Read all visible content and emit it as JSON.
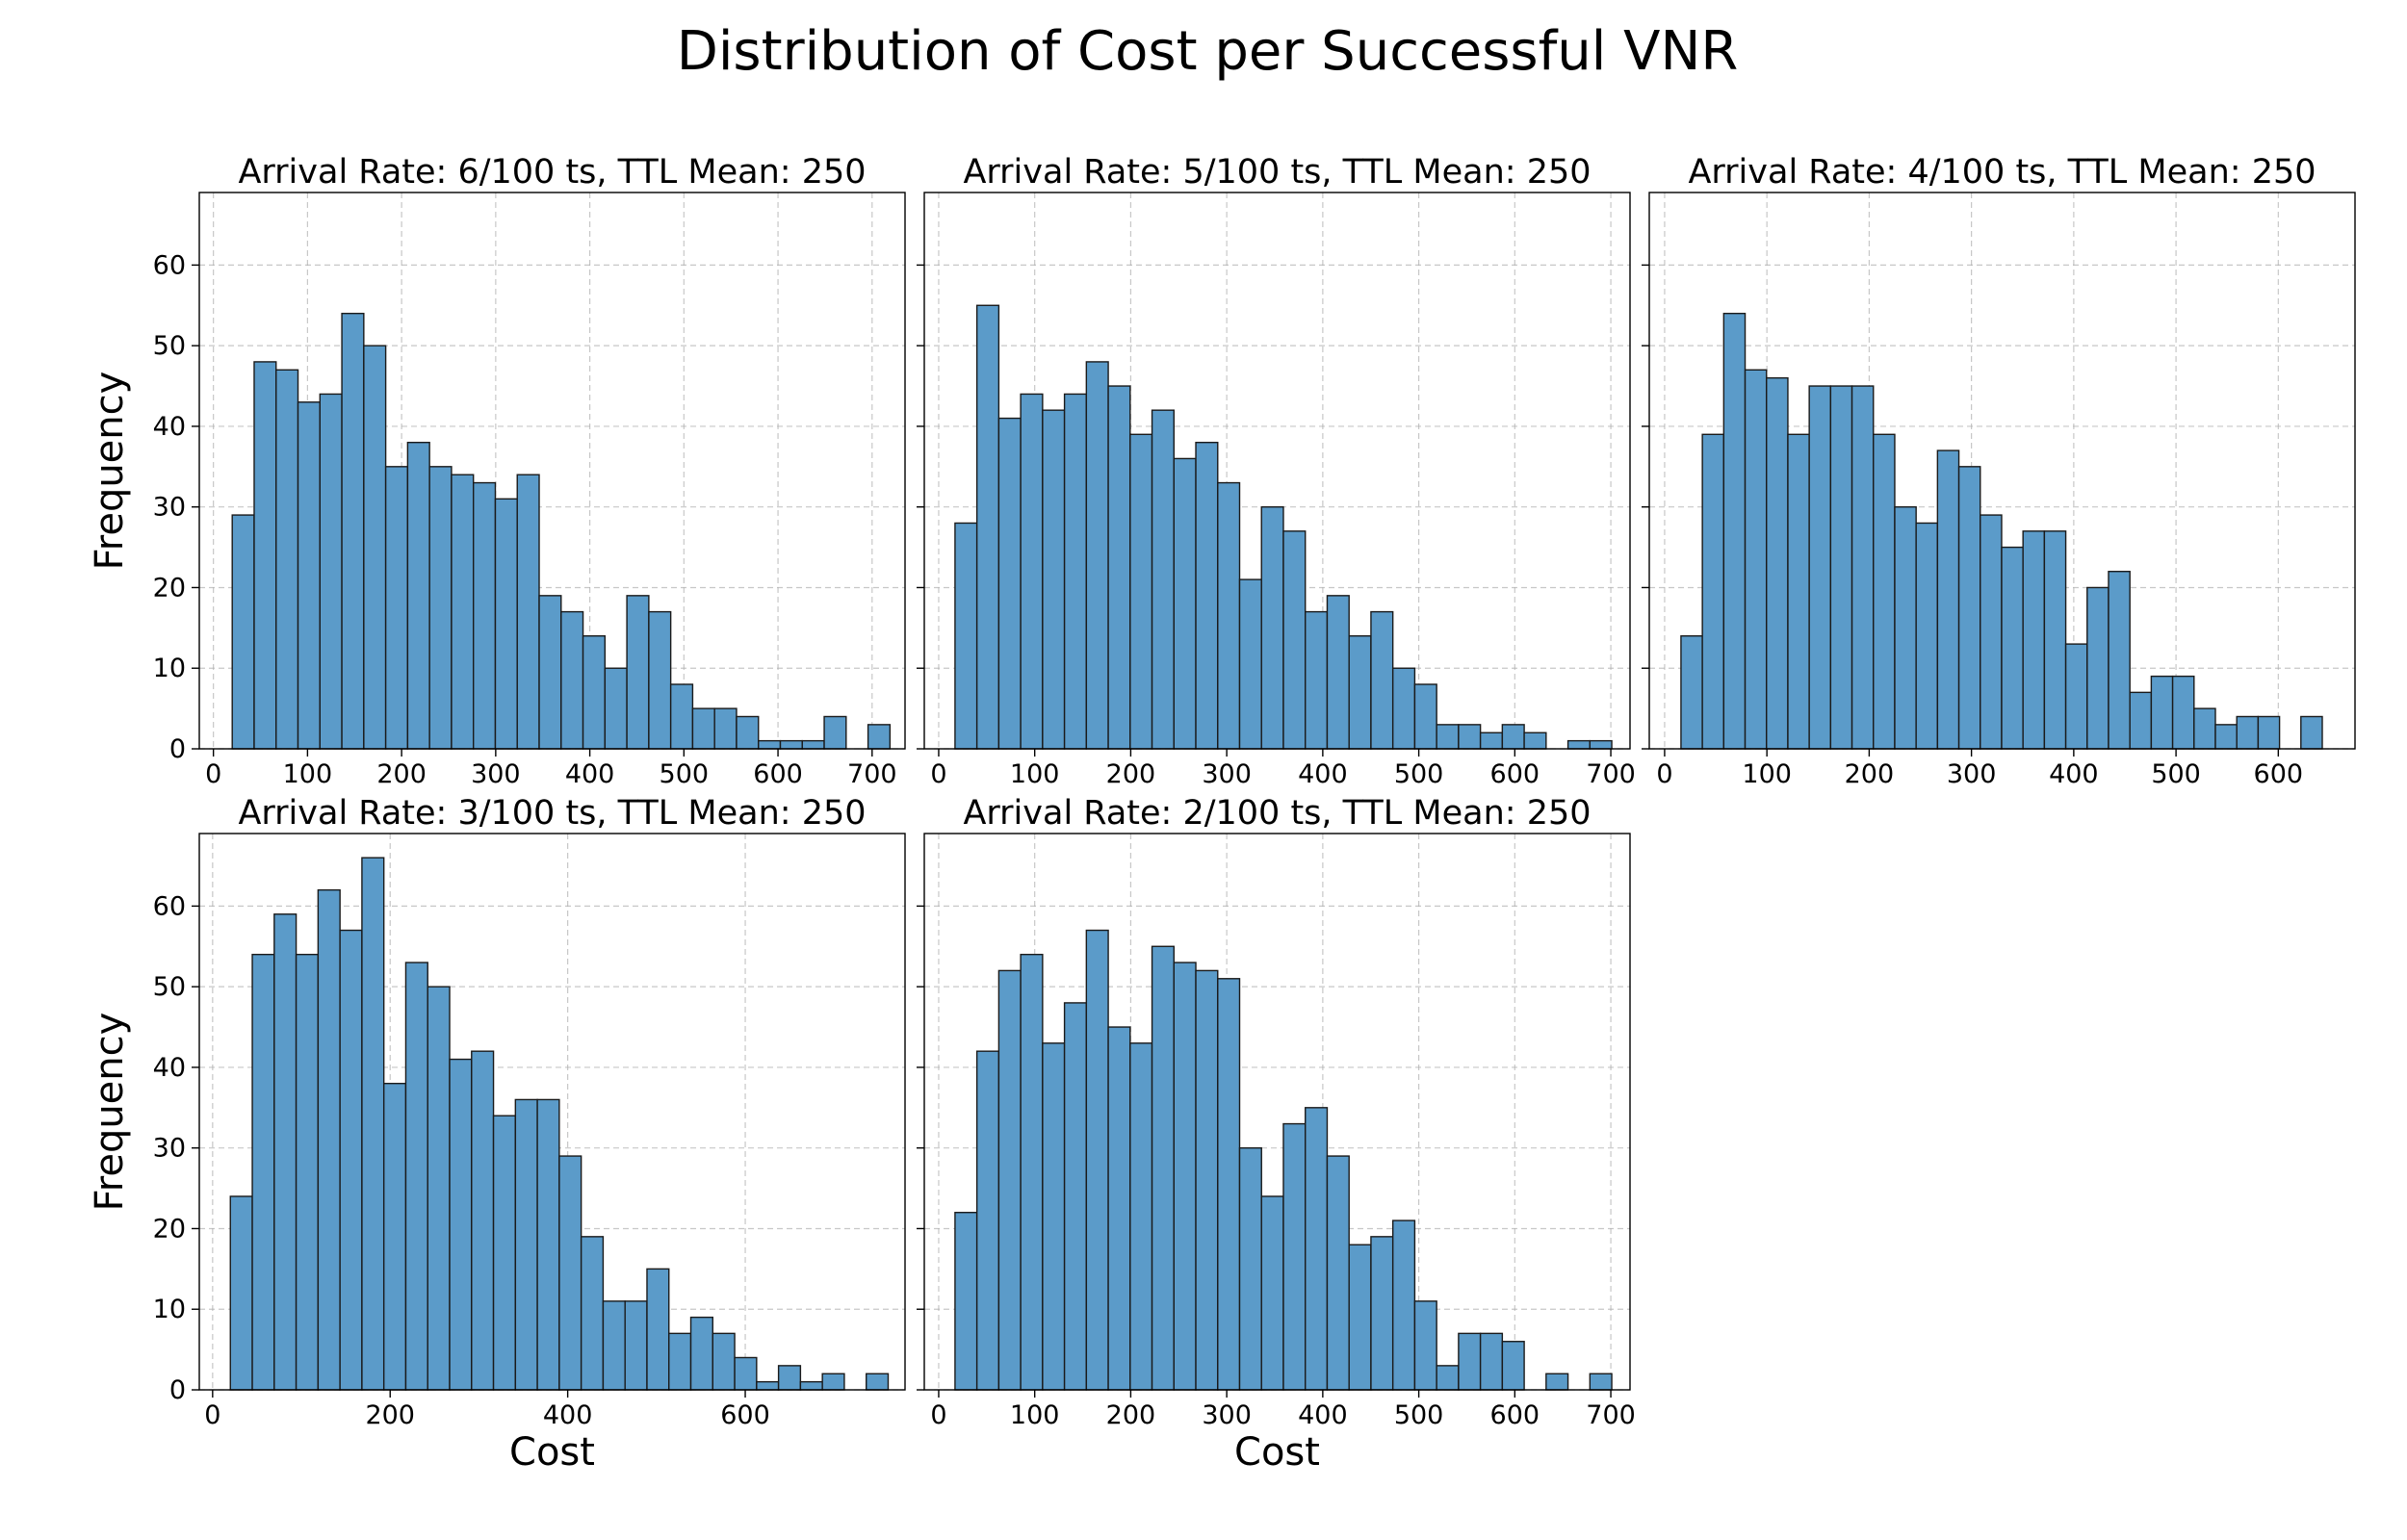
{
  "figure": {
    "title": "Distribution of Cost per Successful VNR"
  },
  "colors": {
    "bar_fill": "#5b9bc9",
    "bar_edge": "#1a1a1a"
  },
  "chart_data": [
    {
      "type": "bar",
      "title": "Arrival Rate: 6/100 ts, TTL Mean: 250",
      "xlabel": "",
      "ylabel": "Frequency",
      "xlim": [
        -15,
        735
      ],
      "ylim": [
        0,
        69
      ],
      "xticks": [
        0,
        100,
        200,
        300,
        400,
        500,
        600,
        700
      ],
      "yticks": [
        0,
        10,
        20,
        30,
        40,
        50,
        60
      ],
      "grid": true,
      "bin_start": 20,
      "bin_width": 23.3,
      "values": [
        29,
        48,
        47,
        43,
        44,
        54,
        50,
        35,
        38,
        35,
        34,
        33,
        31,
        34,
        19,
        17,
        14,
        10,
        19,
        17,
        8,
        5,
        5,
        4,
        1,
        1,
        1,
        4,
        0,
        3
      ]
    },
    {
      "type": "bar",
      "title": "Arrival Rate: 5/100 ts, TTL Mean: 250",
      "xlabel": "",
      "ylabel": "",
      "xlim": [
        -15,
        720
      ],
      "ylim": [
        0,
        69
      ],
      "xticks": [
        0,
        100,
        200,
        300,
        400,
        500,
        600,
        700
      ],
      "yticks": [
        0,
        10,
        20,
        30,
        40,
        50,
        60
      ],
      "grid": true,
      "bin_start": 17,
      "bin_width": 22.8,
      "values": [
        28,
        55,
        41,
        44,
        42,
        44,
        48,
        45,
        39,
        42,
        36,
        38,
        33,
        21,
        30,
        27,
        17,
        19,
        14,
        17,
        10,
        8,
        3,
        3,
        2,
        3,
        2,
        0,
        1,
        1
      ]
    },
    {
      "type": "bar",
      "title": "Arrival Rate: 4/100 ts, TTL Mean: 250",
      "xlabel": "",
      "ylabel": "",
      "xlim": [
        -15,
        675
      ],
      "ylim": [
        0,
        69
      ],
      "xticks": [
        0,
        100,
        200,
        300,
        400,
        500,
        600
      ],
      "yticks": [
        0,
        10,
        20,
        30,
        40,
        50,
        60
      ],
      "grid": true,
      "bin_start": 16,
      "bin_width": 20.9,
      "values": [
        14,
        39,
        54,
        47,
        46,
        39,
        45,
        45,
        45,
        39,
        30,
        28,
        37,
        35,
        29,
        25,
        27,
        27,
        13,
        20,
        22,
        7,
        9,
        9,
        5,
        3,
        4,
        4,
        0,
        4
      ]
    },
    {
      "type": "bar",
      "title": "Arrival Rate: 3/100 ts, TTL Mean: 250",
      "xlabel": "Cost",
      "ylabel": "Frequency",
      "xlim": [
        -15,
        780
      ],
      "ylim": [
        0,
        69
      ],
      "xticks": [
        0,
        200,
        400,
        600
      ],
      "yticks": [
        0,
        10,
        20,
        30,
        40,
        50,
        60
      ],
      "grid": true,
      "bin_start": 20,
      "bin_width": 24.7,
      "values": [
        24,
        54,
        59,
        54,
        62,
        57,
        66,
        38,
        53,
        50,
        41,
        42,
        34,
        36,
        36,
        29,
        19,
        11,
        11,
        15,
        7,
        9,
        7,
        4,
        1,
        3,
        1,
        2,
        0,
        2
      ]
    },
    {
      "type": "bar",
      "title": "Arrival Rate: 2/100 ts, TTL Mean: 250",
      "xlabel": "Cost",
      "ylabel": "",
      "xlim": [
        -15,
        720
      ],
      "ylim": [
        0,
        69
      ],
      "xticks": [
        0,
        100,
        200,
        300,
        400,
        500,
        600,
        700
      ],
      "yticks": [
        0,
        10,
        20,
        30,
        40,
        50,
        60
      ],
      "grid": true,
      "bin_start": 17,
      "bin_width": 22.8,
      "values": [
        22,
        42,
        52,
        54,
        43,
        48,
        57,
        45,
        43,
        55,
        53,
        52,
        51,
        30,
        24,
        33,
        35,
        29,
        18,
        19,
        21,
        11,
        3,
        7,
        7,
        6,
        0,
        2,
        0,
        2
      ]
    }
  ]
}
